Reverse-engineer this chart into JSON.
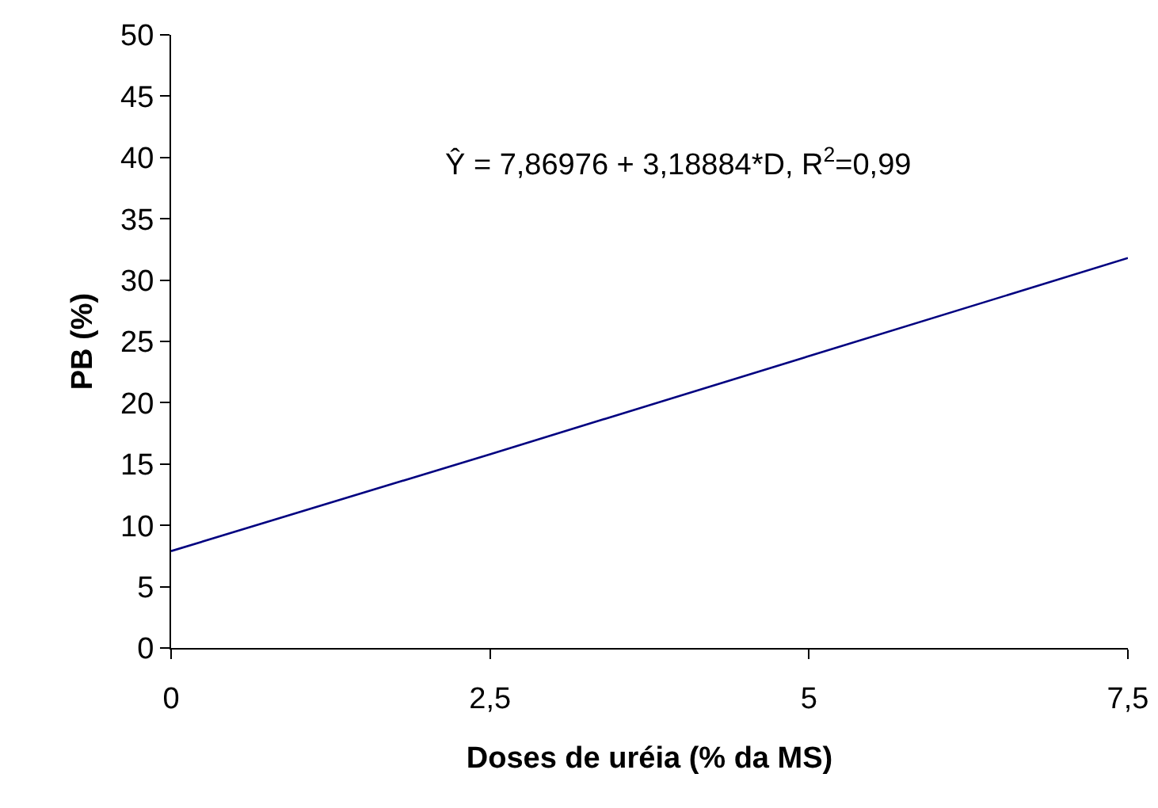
{
  "chart_data": {
    "type": "line",
    "xlabel": "Doses de uréia (% da MS)",
    "ylabel": "PB (%)",
    "x": [
      0,
      2.5,
      5,
      7.5
    ],
    "series": [
      {
        "color": "#000080",
        "values": [
          7.9,
          15.8,
          23.8,
          31.8
        ]
      }
    ],
    "xlim": [
      0,
      7.5
    ],
    "xticks": [
      0,
      {
        "value": 2.5,
        "label": "2,5"
      },
      5,
      {
        "value": 7.5,
        "label": "7,5"
      }
    ],
    "ylim": [
      0,
      50
    ],
    "yticks": [
      0,
      5,
      10,
      15,
      20,
      25,
      30,
      35,
      40,
      45,
      50
    ],
    "annotations": [
      "Ŷ = 7,86976 + 3,18884*D, R$^{2}$=0,99"
    ],
    "grid": false,
    "legend": false,
    "marker": "none",
    "line_style": "solid"
  }
}
